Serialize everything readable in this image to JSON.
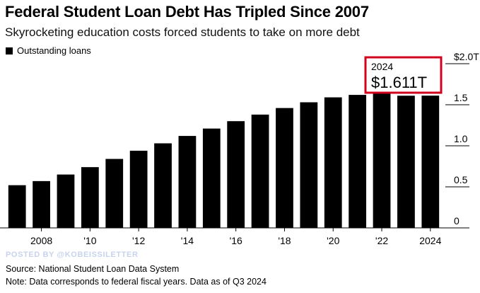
{
  "header": {
    "title": "Federal Student Loan Debt Has Tripled Since 2007",
    "subtitle": "Skyrocketing education costs forced students to take on more debt"
  },
  "legend": {
    "label": "Outstanding loans",
    "color": "#000000"
  },
  "callout": {
    "year": "2024",
    "value": "$1.611T",
    "border_color": "#d0021b"
  },
  "footer": {
    "watermark": "POSTED BY @KOBEISSILETTER",
    "source": "Source: National Student Loan Data System",
    "note": "Note: Data corresponds to federal fiscal years. Data as of Q3 2024"
  },
  "chart_data": {
    "type": "bar",
    "categories": [
      "2007",
      "2008",
      "2009",
      "2010",
      "2011",
      "2012",
      "2013",
      "2014",
      "2015",
      "2016",
      "2017",
      "2018",
      "2019",
      "2020",
      "2021",
      "2022",
      "2023",
      "2024"
    ],
    "series": [
      {
        "values": [
          0.52,
          0.57,
          0.65,
          0.74,
          0.84,
          0.94,
          1.03,
          1.12,
          1.21,
          1.3,
          1.38,
          1.46,
          1.53,
          1.59,
          1.62,
          1.64,
          1.61,
          1.611
        ],
        "color": "#000000"
      }
    ],
    "x_tick_labels": [
      {
        "category": "2008",
        "label": "2008"
      },
      {
        "category": "2010",
        "label": "'10"
      },
      {
        "category": "2012",
        "label": "'12"
      },
      {
        "category": "2014",
        "label": "'14"
      },
      {
        "category": "2016",
        "label": "'16"
      },
      {
        "category": "2018",
        "label": "'18"
      },
      {
        "category": "2020",
        "label": "'20"
      },
      {
        "category": "2022",
        "label": "'22"
      },
      {
        "category": "2024",
        "label": "2024"
      }
    ],
    "y_ticks": [
      {
        "value": 0,
        "label": "0"
      },
      {
        "value": 0.5,
        "label": "0.5"
      },
      {
        "value": 1.0,
        "label": "1.0"
      },
      {
        "value": 1.5,
        "label": "1.5"
      },
      {
        "value": 2.0,
        "label": "$2.0T"
      }
    ],
    "ylim": [
      0,
      2.0
    ],
    "y_axis_position": "right",
    "grid": false,
    "legend_position": "top-left"
  }
}
